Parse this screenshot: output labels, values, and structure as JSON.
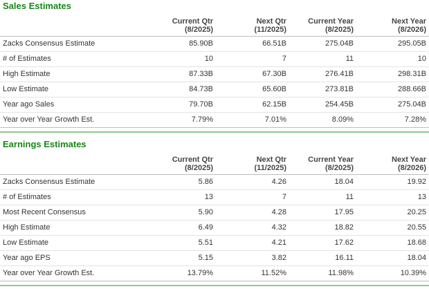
{
  "theme": {
    "accent_green": "#178717",
    "divider_green": "#1e7e1e",
    "header_text": "#444444",
    "body_text": "#333333"
  },
  "sections": [
    {
      "title": "Sales Estimates",
      "columns": [
        {
          "label": "Current Qtr",
          "period": "(8/2025)"
        },
        {
          "label": "Next Qtr",
          "period": "(11/2025)"
        },
        {
          "label": "Current Year",
          "period": "(8/2025)"
        },
        {
          "label": "Next Year",
          "period": "(8/2026)"
        }
      ],
      "rows": [
        {
          "label": "Zacks Consensus Estimate",
          "values": [
            "85.90B",
            "66.51B",
            "275.04B",
            "295.05B"
          ]
        },
        {
          "label": "# of Estimates",
          "values": [
            "10",
            "7",
            "11",
            "10"
          ]
        },
        {
          "label": "High Estimate",
          "values": [
            "87.33B",
            "67.30B",
            "276.41B",
            "298.31B"
          ]
        },
        {
          "label": "Low Estimate",
          "values": [
            "84.73B",
            "65.60B",
            "273.81B",
            "288.66B"
          ]
        },
        {
          "label": "Year ago Sales",
          "values": [
            "79.70B",
            "62.15B",
            "254.45B",
            "275.04B"
          ]
        },
        {
          "label": "Year over Year Growth Est.",
          "values": [
            "7.79%",
            "7.01%",
            "8.09%",
            "7.28%"
          ]
        }
      ]
    },
    {
      "title": "Earnings Estimates",
      "columns": [
        {
          "label": "Current Qtr",
          "period": "(8/2025)"
        },
        {
          "label": "Next Qtr",
          "period": "(11/2025)"
        },
        {
          "label": "Current Year",
          "period": "(8/2025)"
        },
        {
          "label": "Next Year",
          "period": "(8/2026)"
        }
      ],
      "rows": [
        {
          "label": "Zacks Consensus Estimate",
          "values": [
            "5.86",
            "4.26",
            "18.04",
            "19.92"
          ]
        },
        {
          "label": "# of Estimates",
          "values": [
            "13",
            "7",
            "11",
            "13"
          ]
        },
        {
          "label": "Most Recent Consensus",
          "values": [
            "5.90",
            "4.28",
            "17.95",
            "20.25"
          ]
        },
        {
          "label": "High Estimate",
          "values": [
            "6.49",
            "4.32",
            "18.82",
            "20.55"
          ]
        },
        {
          "label": "Low Estimate",
          "values": [
            "5.51",
            "4.21",
            "17.62",
            "18.68"
          ]
        },
        {
          "label": "Year ago EPS",
          "values": [
            "5.15",
            "3.82",
            "16.11",
            "18.04"
          ]
        },
        {
          "label": "Year over Year Growth Est.",
          "values": [
            "13.79%",
            "11.52%",
            "11.98%",
            "10.39%"
          ]
        }
      ]
    }
  ]
}
